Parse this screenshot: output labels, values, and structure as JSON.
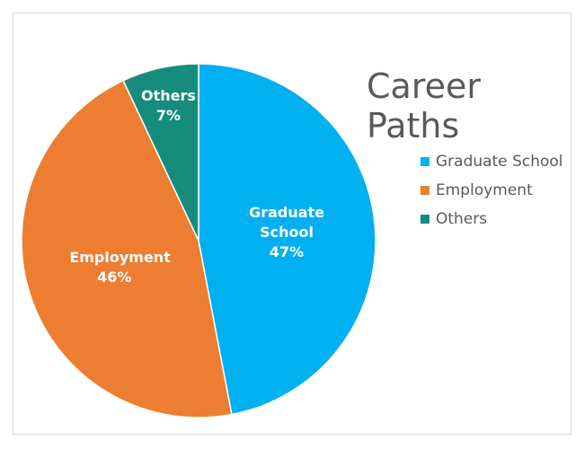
{
  "chart_data": {
    "type": "pie",
    "title": "Career Paths",
    "categories": [
      "Graduate School",
      "Employment",
      "Others"
    ],
    "values": [
      47,
      46,
      7
    ],
    "value_labels": [
      "47%",
      "46%",
      "7%"
    ],
    "colors": [
      "#00b0f0",
      "#ed7d31",
      "#168c7c"
    ],
    "legend": "right"
  }
}
